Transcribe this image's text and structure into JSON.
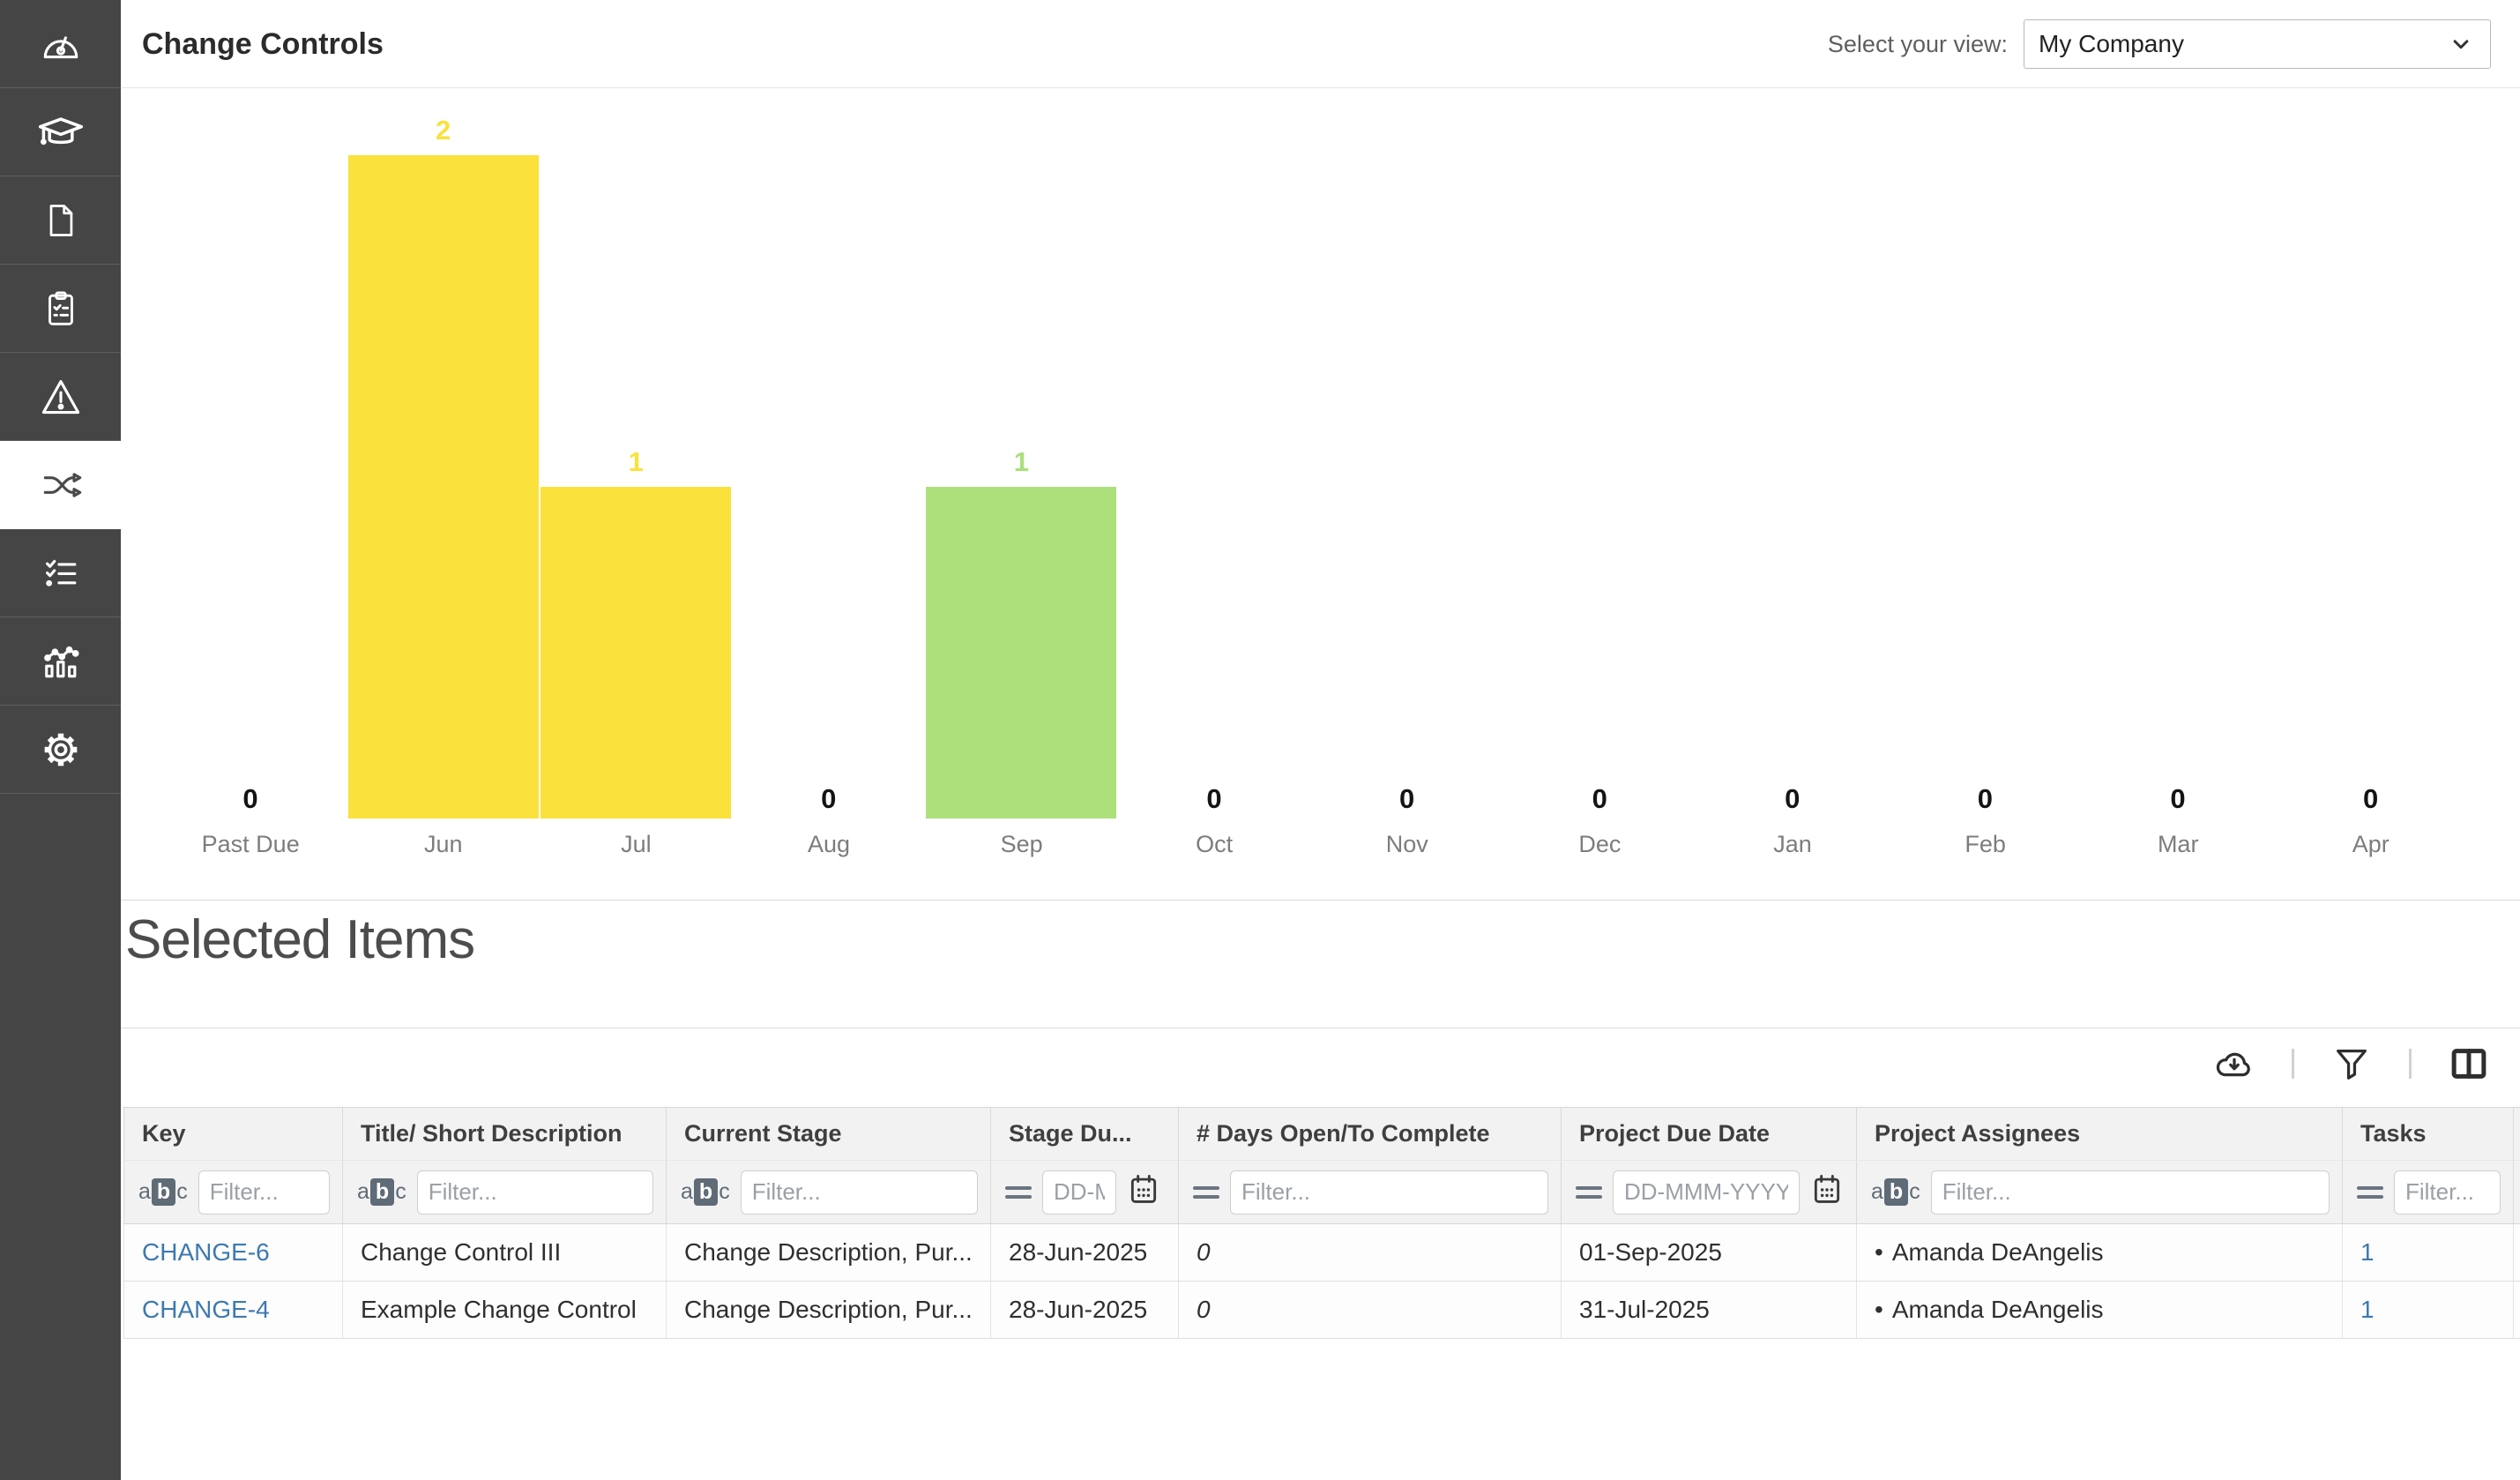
{
  "header": {
    "title": "Change Controls",
    "view_label": "Select your view:",
    "view_value": "My Company"
  },
  "sidebar": {
    "items": [
      {
        "id": "dashboard",
        "icon": "gauge-icon",
        "active": false
      },
      {
        "id": "training",
        "icon": "graduation-cap-icon",
        "active": false
      },
      {
        "id": "documents",
        "icon": "document-icon",
        "active": false
      },
      {
        "id": "audits",
        "icon": "clipboard-checklist-icon",
        "active": false
      },
      {
        "id": "incidents",
        "icon": "warning-triangle-icon",
        "active": false
      },
      {
        "id": "change-controls",
        "icon": "shuffle-icon",
        "active": true
      },
      {
        "id": "task-list",
        "icon": "checklist-icon",
        "active": false
      },
      {
        "id": "reports",
        "icon": "analytics-icon",
        "active": false
      },
      {
        "id": "settings",
        "icon": "gear-icon",
        "active": false
      }
    ]
  },
  "chart_data": {
    "type": "bar",
    "title": "",
    "xlabel": "",
    "ylabel": "",
    "categories": [
      "Past Due",
      "Jun",
      "Jul",
      "Aug",
      "Sep",
      "Oct",
      "Nov",
      "Dec",
      "Jan",
      "Feb",
      "Mar",
      "Apr"
    ],
    "values": [
      0,
      2,
      1,
      0,
      1,
      0,
      0,
      0,
      0,
      0,
      0,
      0
    ],
    "bar_colors": [
      null,
      "#FAE13C",
      "#FAE13C",
      null,
      "#ABE07B",
      null,
      null,
      null,
      null,
      null,
      null,
      null
    ],
    "zero_label_color": "#141414",
    "ylim": [
      0,
      2
    ],
    "grid": false,
    "legend": null,
    "value_labels_shown": true
  },
  "section": {
    "heading": "Selected Items"
  },
  "toolbar": {
    "icons": [
      "cloud-download-icon",
      "filter-funnel-icon",
      "columns-icon"
    ]
  },
  "table": {
    "bullet": "•",
    "text_filter_icon_letters": [
      "a",
      "b",
      "c"
    ],
    "columns": [
      {
        "label": "Key",
        "filter": "text",
        "placeholder": "Filter..."
      },
      {
        "label": "Title/ Short Description",
        "filter": "text",
        "placeholder": "Filter..."
      },
      {
        "label": "Current Stage",
        "filter": "text",
        "placeholder": "Filter..."
      },
      {
        "label": "Stage Du...",
        "filter": "date-short",
        "placeholder": "DD-MMM-YYYY"
      },
      {
        "label": "# Days Open/To Complete",
        "filter": "number",
        "placeholder": "Filter..."
      },
      {
        "label": "Project Due Date",
        "filter": "date",
        "placeholder": "DD-MMM-YYYY"
      },
      {
        "label": "Project Assignees",
        "filter": "text",
        "placeholder": "Filter..."
      },
      {
        "label": "Tasks",
        "filter": "number",
        "placeholder": "Filter..."
      },
      {
        "label": "",
        "filter": "none",
        "placeholder": ""
      }
    ],
    "rows": [
      {
        "key": "CHANGE-6",
        "title": "Change Control III",
        "current_stage": "Change Description, Pur...",
        "stage_due": "28-Jun-2025",
        "days_open": "0",
        "project_due_date": "01-Sep-2025",
        "assignees": [
          "Amanda DeAngelis"
        ],
        "tasks": "1"
      },
      {
        "key": "CHANGE-4",
        "title": "Example Change Control",
        "current_stage": "Change Description, Pur...",
        "stage_due": "28-Jun-2025",
        "days_open": "0",
        "project_due_date": "31-Jul-2025",
        "assignees": [
          "Amanda DeAngelis"
        ],
        "tasks": "1"
      }
    ]
  },
  "colors": {
    "accent_yellow": "#FAE13C",
    "accent_green": "#ABE07B",
    "link_blue": "#3D79B0",
    "sidebar_bg": "#454545",
    "table_header_bg": "#F2F2F2"
  }
}
